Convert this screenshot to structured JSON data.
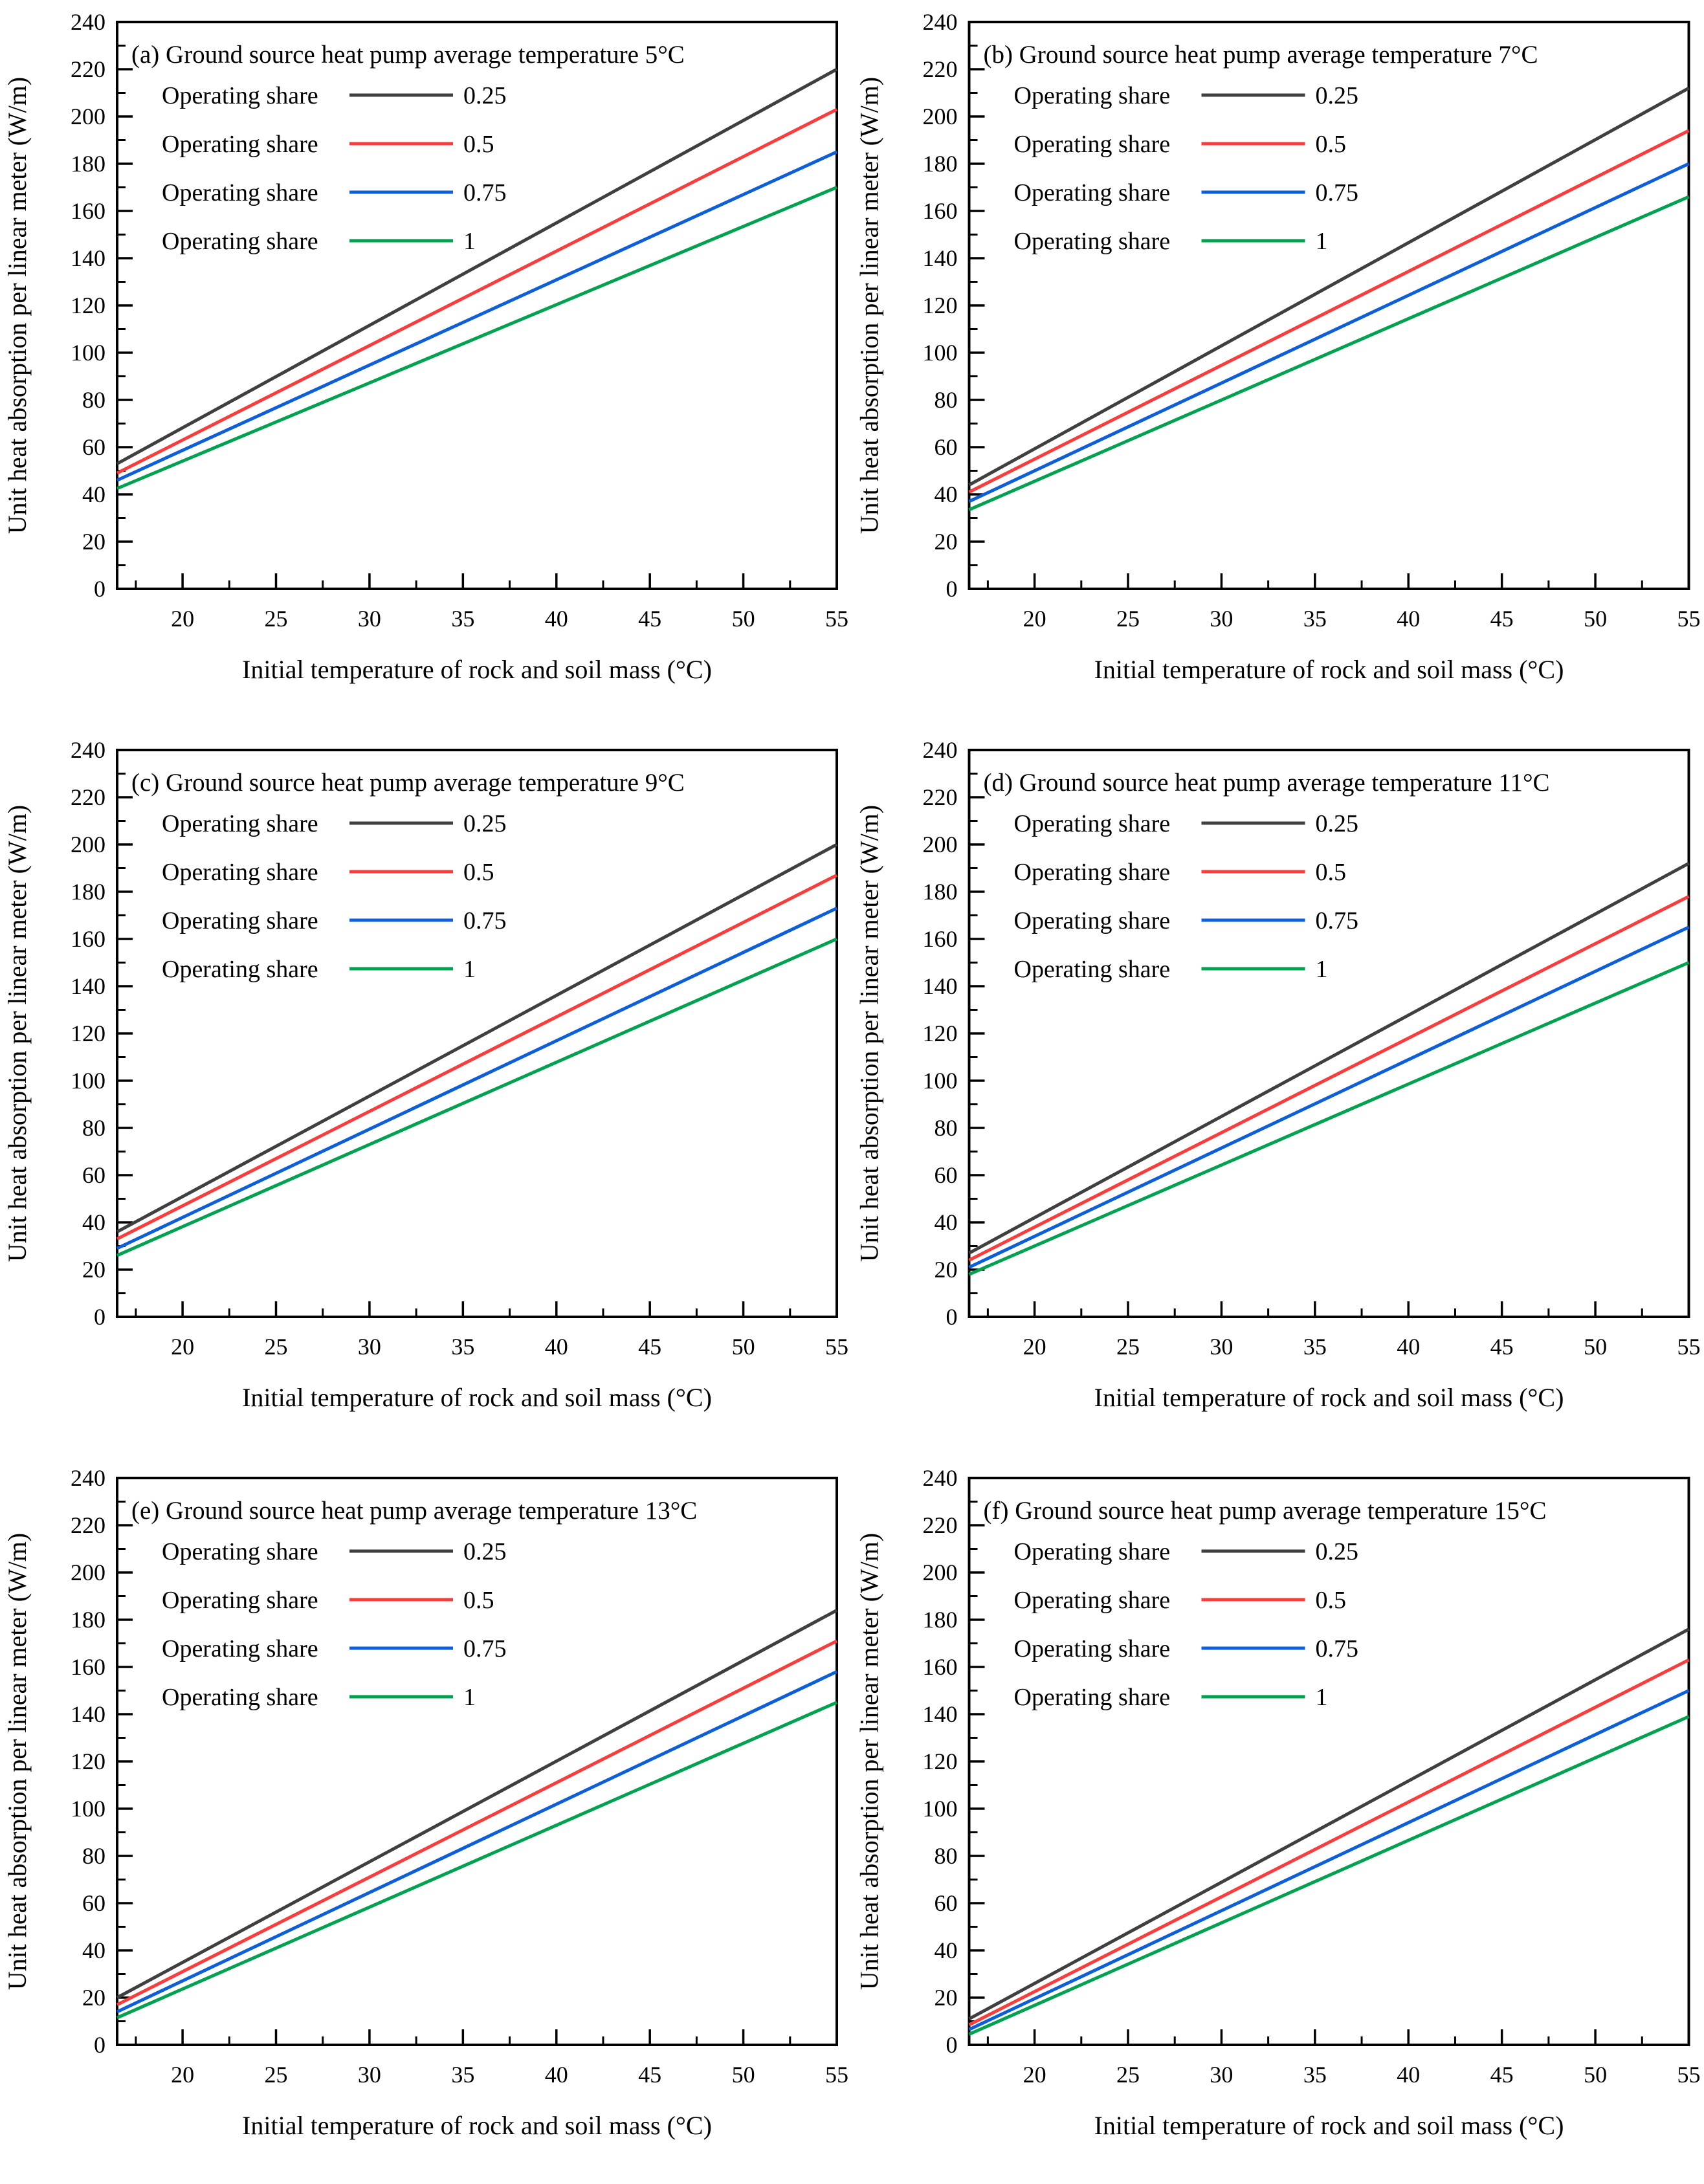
{
  "figure": {
    "background": "#ffffff",
    "axis_color": "#000000",
    "series_colors": [
      "#3F3F3F",
      "#F93C3C",
      "#0C5FD9",
      "#00A24F"
    ],
    "legend_prefix": "Operating share",
    "legend_values": [
      "0.25",
      "0.5",
      "0.75",
      "1"
    ],
    "xlabel": "Initial temperature of rock and soil mass (°C)",
    "ylabel": "Unit heat absorption per linear meter (W/m)"
  },
  "chart_data": [
    {
      "type": "line",
      "panel": "a",
      "title": "(a) Ground source heat pump average temperature 5°C",
      "heat_pump_avg_temperature_c": 5,
      "xlabel": "Initial temperature of rock and soil mass (°C)",
      "ylabel": "Unit heat absorption per linear meter (W/m)",
      "xlim": [
        16.5,
        55
      ],
      "ylim": [
        0,
        240
      ],
      "xticks": [
        20,
        25,
        30,
        35,
        40,
        45,
        50,
        55
      ],
      "yticks": [
        0,
        20,
        40,
        60,
        80,
        100,
        120,
        140,
        160,
        180,
        200,
        220,
        240
      ],
      "grid": false,
      "legend_position": "top-left-inside",
      "series": [
        {
          "name": "Operating share",
          "share": "0.25",
          "color": "#3F3F3F",
          "x": [
            16.5,
            55
          ],
          "y": [
            53,
            220
          ]
        },
        {
          "name": "Operating share",
          "share": "0.5",
          "color": "#F93C3C",
          "x": [
            16.5,
            55
          ],
          "y": [
            49,
            203
          ]
        },
        {
          "name": "Operating share",
          "share": "0.75",
          "color": "#0C5FD9",
          "x": [
            16.5,
            55
          ],
          "y": [
            46,
            185
          ]
        },
        {
          "name": "Operating share",
          "share": "1",
          "color": "#00A24F",
          "x": [
            16.5,
            55
          ],
          "y": [
            42.5,
            170
          ]
        }
      ]
    },
    {
      "type": "line",
      "panel": "b",
      "title": "(b) Ground source heat pump average temperature 7°C",
      "heat_pump_avg_temperature_c": 7,
      "xlabel": "Initial temperature of rock and soil mass (°C)",
      "ylabel": "Unit heat absorption per linear meter (W/m)",
      "xlim": [
        16.5,
        55
      ],
      "ylim": [
        0,
        240
      ],
      "xticks": [
        20,
        25,
        30,
        35,
        40,
        45,
        50,
        55
      ],
      "yticks": [
        0,
        20,
        40,
        60,
        80,
        100,
        120,
        140,
        160,
        180,
        200,
        220,
        240
      ],
      "grid": false,
      "legend_position": "top-left-inside",
      "series": [
        {
          "name": "Operating share",
          "share": "0.25",
          "color": "#3F3F3F",
          "x": [
            16.5,
            55
          ],
          "y": [
            44,
            212
          ]
        },
        {
          "name": "Operating share",
          "share": "0.5",
          "color": "#F93C3C",
          "x": [
            16.5,
            55
          ],
          "y": [
            41,
            194
          ]
        },
        {
          "name": "Operating share",
          "share": "0.75",
          "color": "#0C5FD9",
          "x": [
            16.5,
            55
          ],
          "y": [
            37,
            180
          ]
        },
        {
          "name": "Operating share",
          "share": "1",
          "color": "#00A24F",
          "x": [
            16.5,
            55
          ],
          "y": [
            33.5,
            166
          ]
        }
      ]
    },
    {
      "type": "line",
      "panel": "c",
      "title": "(c) Ground source heat pump average temperature 9°C",
      "heat_pump_avg_temperature_c": 9,
      "xlabel": "Initial temperature of rock and soil mass (°C)",
      "ylabel": "Unit heat absorption per linear meter (W/m)",
      "xlim": [
        16.5,
        55
      ],
      "ylim": [
        0,
        240
      ],
      "xticks": [
        20,
        25,
        30,
        35,
        40,
        45,
        50,
        55
      ],
      "yticks": [
        0,
        20,
        40,
        60,
        80,
        100,
        120,
        140,
        160,
        180,
        200,
        220,
        240
      ],
      "grid": false,
      "legend_position": "top-left-inside",
      "series": [
        {
          "name": "Operating share",
          "share": "0.25",
          "color": "#3F3F3F",
          "x": [
            16.5,
            55
          ],
          "y": [
            36,
            200
          ]
        },
        {
          "name": "Operating share",
          "share": "0.5",
          "color": "#F93C3C",
          "x": [
            16.5,
            55
          ],
          "y": [
            33,
            187
          ]
        },
        {
          "name": "Operating share",
          "share": "0.75",
          "color": "#0C5FD9",
          "x": [
            16.5,
            55
          ],
          "y": [
            29,
            173
          ]
        },
        {
          "name": "Operating share",
          "share": "1",
          "color": "#00A24F",
          "x": [
            16.5,
            55
          ],
          "y": [
            26,
            160
          ]
        }
      ]
    },
    {
      "type": "line",
      "panel": "d",
      "title": "(d) Ground source heat pump average temperature 11°C",
      "heat_pump_avg_temperature_c": 11,
      "xlabel": "Initial temperature of rock and soil mass (°C)",
      "ylabel": "Unit heat absorption per linear meter (W/m)",
      "xlim": [
        16.5,
        55
      ],
      "ylim": [
        0,
        240
      ],
      "xticks": [
        20,
        25,
        30,
        35,
        40,
        45,
        50,
        55
      ],
      "yticks": [
        0,
        20,
        40,
        60,
        80,
        100,
        120,
        140,
        160,
        180,
        200,
        220,
        240
      ],
      "grid": false,
      "legend_position": "top-left-inside",
      "series": [
        {
          "name": "Operating share",
          "share": "0.25",
          "color": "#3F3F3F",
          "x": [
            16.5,
            55
          ],
          "y": [
            27,
            192
          ]
        },
        {
          "name": "Operating share",
          "share": "0.5",
          "color": "#F93C3C",
          "x": [
            16.5,
            55
          ],
          "y": [
            24,
            178
          ]
        },
        {
          "name": "Operating share",
          "share": "0.75",
          "color": "#0C5FD9",
          "x": [
            16.5,
            55
          ],
          "y": [
            21,
            165
          ]
        },
        {
          "name": "Operating share",
          "share": "1",
          "color": "#00A24F",
          "x": [
            16.5,
            55
          ],
          "y": [
            18,
            150
          ]
        }
      ]
    },
    {
      "type": "line",
      "panel": "e",
      "title": "(e) Ground source heat pump average temperature 13°C",
      "heat_pump_avg_temperature_c": 13,
      "xlabel": "Initial temperature of rock and soil mass (°C)",
      "ylabel": "Unit heat absorption per linear meter (W/m)",
      "xlim": [
        16.5,
        55
      ],
      "ylim": [
        0,
        240
      ],
      "xticks": [
        20,
        25,
        30,
        35,
        40,
        45,
        50,
        55
      ],
      "yticks": [
        0,
        20,
        40,
        60,
        80,
        100,
        120,
        140,
        160,
        180,
        200,
        220,
        240
      ],
      "grid": false,
      "legend_position": "top-left-inside",
      "series": [
        {
          "name": "Operating share",
          "share": "0.25",
          "color": "#3F3F3F",
          "x": [
            16.5,
            55
          ],
          "y": [
            20,
            184
          ]
        },
        {
          "name": "Operating share",
          "share": "0.5",
          "color": "#F93C3C",
          "x": [
            16.5,
            55
          ],
          "y": [
            17,
            171
          ]
        },
        {
          "name": "Operating share",
          "share": "0.75",
          "color": "#0C5FD9",
          "x": [
            16.5,
            55
          ],
          "y": [
            14,
            158
          ]
        },
        {
          "name": "Operating share",
          "share": "1",
          "color": "#00A24F",
          "x": [
            16.5,
            55
          ],
          "y": [
            11.5,
            145
          ]
        }
      ]
    },
    {
      "type": "line",
      "panel": "f",
      "title": "(f) Ground source heat pump average temperature 15°C",
      "heat_pump_avg_temperature_c": 15,
      "xlabel": "Initial temperature of rock and soil mass (°C)",
      "ylabel": "Unit heat absorption per linear meter (W/m)",
      "xlim": [
        16.5,
        55
      ],
      "ylim": [
        0,
        240
      ],
      "xticks": [
        20,
        25,
        30,
        35,
        40,
        45,
        50,
        55
      ],
      "yticks": [
        0,
        20,
        40,
        60,
        80,
        100,
        120,
        140,
        160,
        180,
        200,
        220,
        240
      ],
      "grid": false,
      "legend_position": "top-left-inside",
      "series": [
        {
          "name": "Operating share",
          "share": "0.25",
          "color": "#3F3F3F",
          "x": [
            16.5,
            55
          ],
          "y": [
            11,
            176
          ]
        },
        {
          "name": "Operating share",
          "share": "0.5",
          "color": "#F93C3C",
          "x": [
            16.5,
            55
          ],
          "y": [
            8.5,
            163
          ]
        },
        {
          "name": "Operating share",
          "share": "0.75",
          "color": "#0C5FD9",
          "x": [
            16.5,
            55
          ],
          "y": [
            6.5,
            150
          ]
        },
        {
          "name": "Operating share",
          "share": "1",
          "color": "#00A24F",
          "x": [
            16.5,
            55
          ],
          "y": [
            4.5,
            139
          ]
        }
      ]
    }
  ]
}
